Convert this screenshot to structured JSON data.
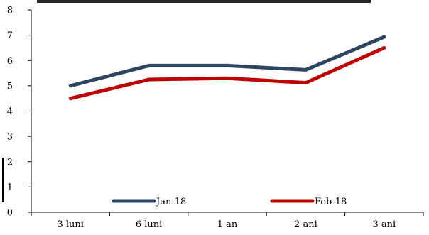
{
  "chart_data": {
    "type": "line",
    "title": "",
    "xlabel": "",
    "ylabel": "",
    "categories": [
      "3 luni",
      "6 luni",
      "1 an",
      "2 ani",
      "3 ani"
    ],
    "ylim": [
      0,
      8
    ],
    "yticks": [
      "0",
      "1",
      "2",
      "3",
      "4",
      "5",
      "6",
      "7",
      "8"
    ],
    "grid": false,
    "legend_position": "bottom",
    "series": [
      {
        "name": "Jan-18",
        "color": "#2e4562",
        "values": [
          5.0,
          5.8,
          5.8,
          5.63,
          6.93
        ]
      },
      {
        "name": "Feb-18",
        "color": "#c00000",
        "values": [
          4.5,
          5.25,
          5.3,
          5.12,
          6.5
        ]
      }
    ]
  }
}
